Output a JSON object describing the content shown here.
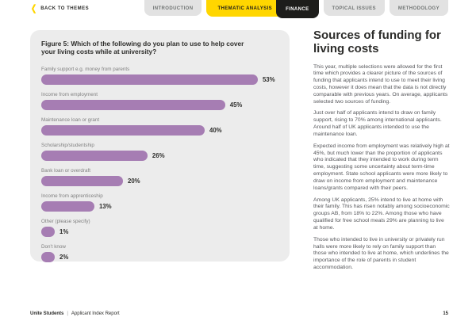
{
  "header": {
    "back_label": "BACK TO THEMES",
    "tabs": [
      {
        "label": "INTRODUCTION",
        "style": "default"
      },
      {
        "label": "THEMATIC ANALYSIS",
        "style": "yellow"
      },
      {
        "label": "FINANCE",
        "style": "black"
      },
      {
        "label": "TOPICAL ISSUES",
        "style": "default"
      },
      {
        "label": "METHODOLOGY",
        "style": "default"
      }
    ]
  },
  "figure": {
    "title": "Figure 5: Which of the following do you plan to use to help cover your living costs while at university?"
  },
  "chart_data": {
    "type": "bar",
    "orientation": "horizontal",
    "title": "Figure 5: Which of the following do you plan to use to help cover your living costs while at university?",
    "categories": [
      "Family support e.g. money from parents",
      "Income from employment",
      "Maintenance loan or grant",
      "Scholarship/studentship",
      "Bank loan or overdraft",
      "Income from apprenticeship",
      "Other (please specify)",
      "Don't know"
    ],
    "values": [
      53,
      45,
      40,
      26,
      20,
      13,
      1,
      2
    ],
    "value_labels": [
      "53%",
      "45%",
      "40%",
      "26%",
      "20%",
      "13%",
      "1%",
      "2%"
    ],
    "xlim": [
      0,
      60
    ],
    "grid": false,
    "bar_color": "#a67db3",
    "panel_background": "#ececec"
  },
  "article": {
    "title": "Sources of funding for living costs",
    "paragraphs": [
      "This year, multiple selections were allowed for the first time which provides a clearer picture of the sources of funding that applicants intend to use to meet their living costs, however it does mean that the data is not directly comparable with previous years. On average, applicants selected two sources of funding.",
      "Just over half of applicants intend to draw on family support, rising to 70% among international applicants. Around half of UK applicants intended to use the maintenance loan.",
      "Expected income from employment was relatively high at 45%, but much lower than the proportion of applicants who indicated that they intended to work during term time, suggesting some uncertainty about term-time employment. State school applicants were more likely to draw on income from employment and maintenance loans/grants compared with their peers.",
      "Among UK applicants, 25% intend to live at home with their family. This has risen notably among socioeconomic groups AB, from 18% to 22%. Among those who have qualified for free school meals 29% are planning to live at home.",
      "Those who intended to live in university or privately run halls were more likely to rely on family support than those who intended to live at home, which underlines the importance of the role of parents in student accommodation."
    ]
  },
  "footer": {
    "brand": "Unite Students",
    "separator": "|",
    "report": "Applicant Index Report",
    "page_number": "15"
  },
  "colors": {
    "accent_yellow": "#ffd600",
    "tab_black": "#1d1d1b",
    "tab_gray": "#e2e2e2",
    "bar_purple": "#a67db3",
    "panel_gray": "#ececec",
    "heading_text": "#2d2d2b",
    "body_text": "#55565a"
  }
}
